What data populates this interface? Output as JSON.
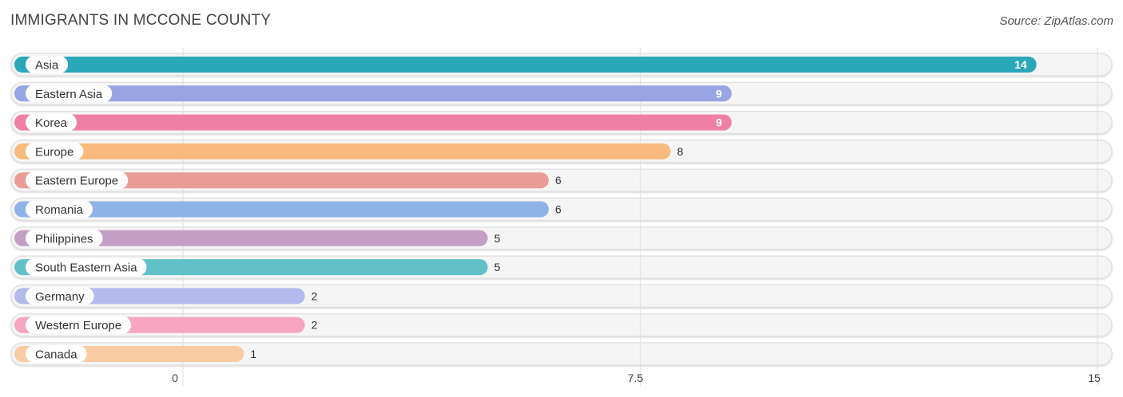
{
  "header": {
    "title": "IMMIGRANTS IN MCCONE COUNTY",
    "source": "Source: ZipAtlas.com"
  },
  "chart_data": {
    "type": "bar",
    "orientation": "horizontal",
    "title": "IMMIGRANTS IN MCCONE COUNTY",
    "xlabel": "",
    "ylabel": "",
    "xlim": [
      0,
      15
    ],
    "ticks": [
      0,
      7.5,
      15
    ],
    "tick_labels": [
      "0",
      "7.5",
      "15"
    ],
    "grid": true,
    "categories": [
      "Asia",
      "Eastern Asia",
      "Korea",
      "Europe",
      "Eastern Europe",
      "Romania",
      "Philippines",
      "South Eastern Asia",
      "Germany",
      "Western Europe",
      "Canada"
    ],
    "values": [
      14,
      9,
      9,
      8,
      6,
      6,
      5,
      5,
      2,
      2,
      1
    ],
    "value_labels": [
      "14",
      "9",
      "9",
      "8",
      "6",
      "6",
      "5",
      "5",
      "2",
      "2",
      "1"
    ],
    "colors": [
      "#2aa8b8",
      "#98a4e3",
      "#f07fa6",
      "#f8ba7e",
      "#eb9c98",
      "#8fb3e6",
      "#c39fc6",
      "#62c0c8",
      "#b4baec",
      "#f7a5c0",
      "#f9cba3"
    ]
  }
}
